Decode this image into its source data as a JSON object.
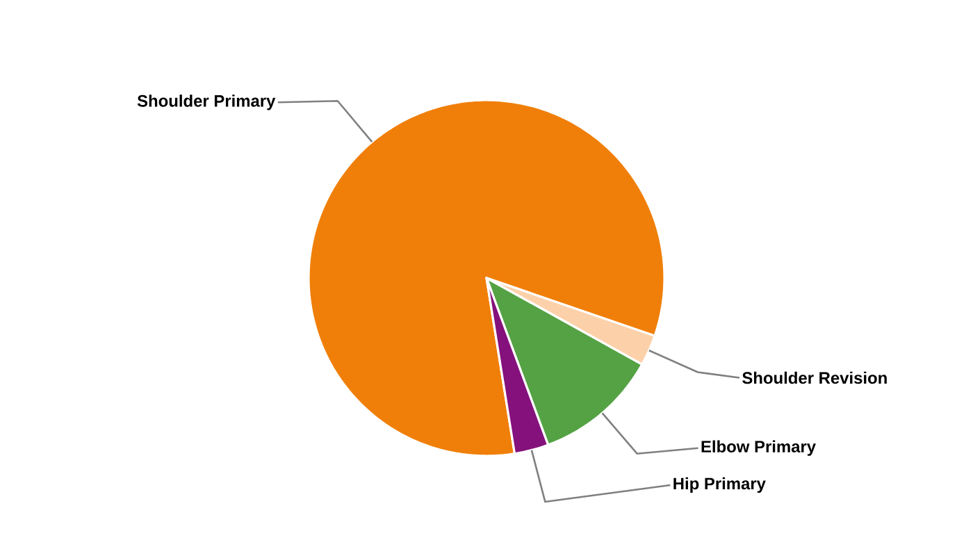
{
  "chart_data": {
    "type": "pie",
    "categories": [
      "Shoulder Primary",
      "Shoulder Revision",
      "Elbow Primary",
      "Hip Primary"
    ],
    "values": [
      82.8,
      2.8,
      11.3,
      3.1
    ],
    "colors": [
      "#f07f09",
      "#fcd1aa",
      "#54a244",
      "#84117c"
    ]
  }
}
